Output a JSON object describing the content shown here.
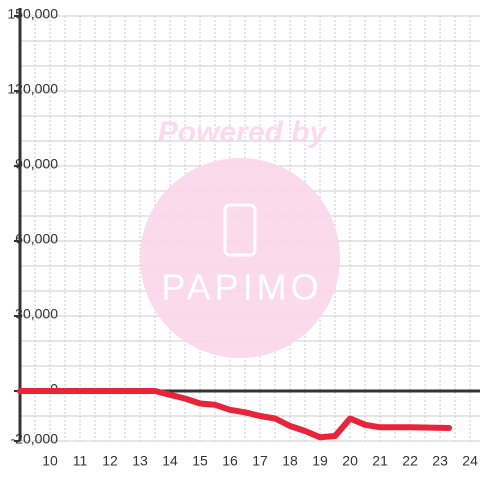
{
  "chart_data": {
    "type": "line",
    "x": [
      9,
      13.5,
      14,
      14.5,
      15,
      15.5,
      16,
      16.5,
      17,
      17.5,
      18,
      18.5,
      19,
      19.5,
      20,
      20.5,
      21,
      22,
      23.3
    ],
    "series": [
      {
        "color": "#e8233a",
        "values": [
          0,
          0,
          -1500,
          -3000,
          -5000,
          -5500,
          -7500,
          -8500,
          -10000,
          -11000,
          -14000,
          -16000,
          -18500,
          -18000,
          -11000,
          -13500,
          -14500,
          -14500,
          -14800
        ]
      }
    ],
    "xlim": [
      9,
      24.33
    ],
    "xticks": [
      10,
      11,
      12,
      13,
      14,
      15,
      16,
      17,
      18,
      19,
      20,
      21,
      22,
      23,
      24
    ],
    "xminor": [
      9.5,
      10.5,
      11.5,
      12.5,
      13.5,
      14.5,
      15.5,
      16.5,
      17.5,
      18.5,
      19.5,
      20.5,
      21.5,
      22.5,
      23.5
    ],
    "ylim": [
      -20000,
      150000
    ],
    "yticks": [
      {
        "value": -20000,
        "label": "-20,000"
      },
      0,
      {
        "value": 30000,
        "label": "30,000"
      },
      {
        "value": 60000,
        "label": "60,000"
      },
      {
        "value": 90000,
        "label": "90,000"
      },
      {
        "value": 120000,
        "label": "120,000"
      },
      {
        "value": 150000,
        "label": "150,000"
      }
    ],
    "yminor": [
      -10000,
      10000,
      20000,
      40000,
      50000,
      70000,
      80000,
      100000,
      110000,
      130000,
      140000
    ],
    "grid": true,
    "watermark": {
      "text": "Powered by",
      "logo": "PAPIMO"
    }
  }
}
